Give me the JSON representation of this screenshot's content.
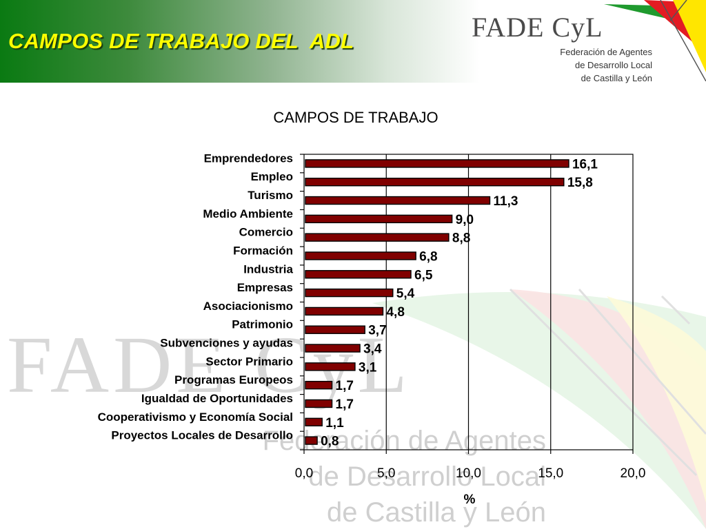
{
  "header": {
    "title": "CAMPOS DE TRABAJO DEL  ADL",
    "logo_text": "FADE CyL",
    "logo_subtitle": [
      "Federación de Agentes",
      "de Desarrollo Local",
      "de Castilla y León"
    ]
  },
  "watermark": {
    "logo_text": "FADE CyL",
    "lines": [
      "Federación de Agentes",
      "de Desarrollo Local",
      "de Castilla y León"
    ]
  },
  "colors": {
    "banner_green": "#0a7a12",
    "title_yellow": "#ffff00",
    "bar_fill": "#800000",
    "logo_red": "#e31b23",
    "logo_yellow": "#ffe600",
    "logo_green": "#1f9a2e"
  },
  "chart_data": {
    "type": "bar",
    "orientation": "horizontal",
    "title": "CAMPOS DE TRABAJO",
    "xlabel": "%",
    "ylabel": "",
    "xlim": [
      0,
      20
    ],
    "x_ticks": [
      "0,0",
      "5,0",
      "10,0",
      "15,0",
      "20,0"
    ],
    "grid": "vertical",
    "categories": [
      "Emprendedores",
      "Empleo",
      "Turismo",
      "Medio Ambiente",
      "Comercio",
      "Formación",
      "Industria",
      "Empresas",
      "Asociacionismo",
      "Patrimonio",
      "Subvenciones y ayudas",
      "Sector Primario",
      "Programas Europeos",
      "Igualdad de Oportunidades",
      "Cooperativismo y Economía Social",
      "Proyectos Locales de Desarrollo"
    ],
    "values": [
      16.1,
      15.8,
      11.3,
      9.0,
      8.8,
      6.8,
      6.5,
      5.4,
      4.8,
      3.7,
      3.4,
      3.1,
      1.7,
      1.7,
      1.1,
      0.8
    ],
    "value_labels": [
      "16,1",
      "15,8",
      "11,3",
      "9,0",
      "8,8",
      "6,8",
      "6,5",
      "5,4",
      "4,8",
      "3,7",
      "3,4",
      "3,1",
      "1,7",
      "1,7",
      "1,1",
      "0,8"
    ]
  }
}
